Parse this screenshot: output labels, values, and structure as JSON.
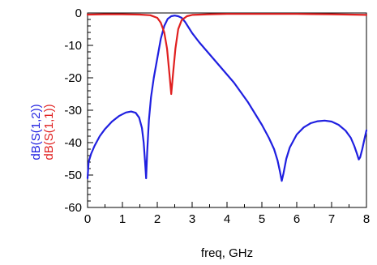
{
  "chart_data": {
    "type": "line",
    "title": "",
    "xlabel": "freq, GHz",
    "ylabel_parts": [
      {
        "text": "dB(S(1,2))",
        "color": "#1f1fe0"
      },
      {
        "text": "dB(S(1,1))",
        "color": "#e01f1f"
      }
    ],
    "xlim": [
      0,
      8
    ],
    "ylim": [
      -60,
      0
    ],
    "x_ticks": [
      0,
      1,
      2,
      3,
      4,
      5,
      6,
      7,
      8
    ],
    "y_ticks": [
      0,
      -10,
      -20,
      -30,
      -40,
      -50,
      -60
    ],
    "grid": false,
    "series": [
      {
        "name": "dB(S(1,2))",
        "color": "#1f1fe0",
        "points": [
          [
            0,
            -51
          ],
          [
            0.03,
            -46
          ],
          [
            0.1,
            -43.5
          ],
          [
            0.2,
            -41
          ],
          [
            0.35,
            -38
          ],
          [
            0.5,
            -35.8
          ],
          [
            0.7,
            -33.5
          ],
          [
            0.9,
            -31.8
          ],
          [
            1.1,
            -30.7
          ],
          [
            1.25,
            -30.4
          ],
          [
            1.38,
            -30.8
          ],
          [
            1.48,
            -32.3
          ],
          [
            1.56,
            -35.5
          ],
          [
            1.61,
            -40
          ],
          [
            1.65,
            -46
          ],
          [
            1.68,
            -51
          ],
          [
            1.71,
            -43
          ],
          [
            1.76,
            -33
          ],
          [
            1.82,
            -26
          ],
          [
            1.9,
            -20
          ],
          [
            2.0,
            -14
          ],
          [
            2.1,
            -8
          ],
          [
            2.2,
            -4
          ],
          [
            2.3,
            -1.8
          ],
          [
            2.4,
            -1
          ],
          [
            2.5,
            -0.8
          ],
          [
            2.6,
            -1
          ],
          [
            2.7,
            -1.5
          ],
          [
            2.8,
            -2.8
          ],
          [
            2.9,
            -4.5
          ],
          [
            3.0,
            -6.2
          ],
          [
            3.2,
            -9
          ],
          [
            3.4,
            -11.5
          ],
          [
            3.6,
            -14
          ],
          [
            3.8,
            -16.5
          ],
          [
            4.0,
            -19
          ],
          [
            4.2,
            -21.5
          ],
          [
            4.4,
            -24.5
          ],
          [
            4.6,
            -27.5
          ],
          [
            4.8,
            -31
          ],
          [
            5.0,
            -34.5
          ],
          [
            5.2,
            -38.5
          ],
          [
            5.35,
            -42
          ],
          [
            5.45,
            -45.5
          ],
          [
            5.52,
            -49
          ],
          [
            5.57,
            -51.8
          ],
          [
            5.62,
            -49.5
          ],
          [
            5.7,
            -45
          ],
          [
            5.8,
            -41.5
          ],
          [
            6.0,
            -37.5
          ],
          [
            6.2,
            -35.3
          ],
          [
            6.4,
            -34
          ],
          [
            6.6,
            -33.4
          ],
          [
            6.8,
            -33.2
          ],
          [
            7.0,
            -33.5
          ],
          [
            7.2,
            -34.5
          ],
          [
            7.4,
            -36.3
          ],
          [
            7.55,
            -38.5
          ],
          [
            7.65,
            -41
          ],
          [
            7.73,
            -43.5
          ],
          [
            7.78,
            -45.2
          ],
          [
            7.82,
            -44.5
          ],
          [
            7.88,
            -42
          ],
          [
            7.94,
            -39
          ],
          [
            8.0,
            -36.2
          ]
        ]
      },
      {
        "name": "dB(S(1,1))",
        "color": "#e01f1f",
        "points": [
          [
            0,
            -0.5
          ],
          [
            0.5,
            -0.4
          ],
          [
            1.0,
            -0.4
          ],
          [
            1.5,
            -0.5
          ],
          [
            1.8,
            -0.7
          ],
          [
            2.0,
            -1.5
          ],
          [
            2.1,
            -3
          ],
          [
            2.2,
            -6
          ],
          [
            2.28,
            -11
          ],
          [
            2.35,
            -19
          ],
          [
            2.4,
            -25
          ],
          [
            2.45,
            -19
          ],
          [
            2.52,
            -11
          ],
          [
            2.6,
            -5
          ],
          [
            2.7,
            -2.2
          ],
          [
            2.85,
            -1
          ],
          [
            3.0,
            -0.6
          ],
          [
            3.5,
            -0.4
          ],
          [
            4.0,
            -0.3
          ],
          [
            5.0,
            -0.3
          ],
          [
            6.0,
            -0.3
          ],
          [
            7.0,
            -0.4
          ],
          [
            8.0,
            -0.6
          ]
        ]
      }
    ]
  }
}
